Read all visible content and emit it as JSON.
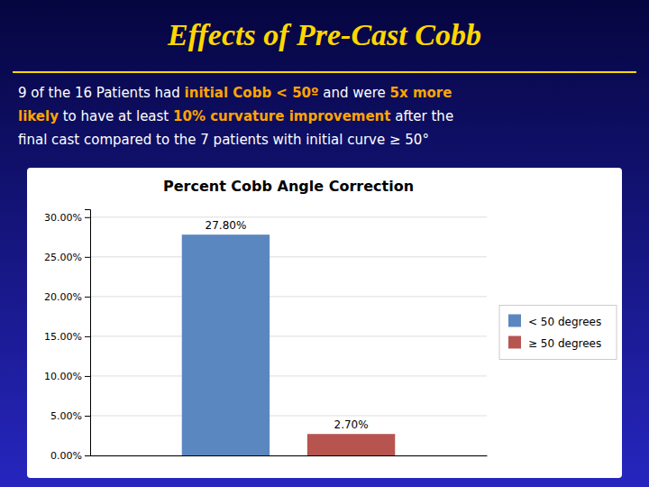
{
  "title": "Effects of Pre-Cast Cobb",
  "subtitle": [
    [
      {
        "text": "9 of the 16 Patients had "
      },
      {
        "text": "initial Cobb < 50º",
        "color": "#FFA500"
      },
      {
        "text": " and were "
      },
      {
        "text": "5x more",
        "color": "#FFA500"
      }
    ],
    [
      {
        "text": "likely",
        "color": "#FFA500"
      },
      {
        "text": " to have at least "
      },
      {
        "text": "10% curvature improvement",
        "color": "#FFA500"
      },
      {
        "text": " after the"
      }
    ],
    [
      {
        "text": "final cast compared to the 7 patients with initial curve ≥ 50°"
      }
    ]
  ],
  "chart_data": {
    "type": "bar",
    "title": "Percent Cobb Angle Correction",
    "categories": [
      null
    ],
    "series": [
      {
        "name": "< 50 degrees",
        "color": "#5B87C0",
        "values": [
          27.8
        ],
        "value_labels": [
          "27.80%"
        ]
      },
      {
        "name": "≥ 50 degrees",
        "color": "#B85450",
        "values": [
          2.7
        ],
        "value_labels": [
          "2.70%"
        ]
      }
    ],
    "ylim": [
      0,
      31
    ],
    "yticks": [
      {
        "value": 0,
        "label": "0.00%"
      },
      {
        "value": 5,
        "label": "5.00%"
      },
      {
        "value": 10,
        "label": "10.00%"
      },
      {
        "value": 15,
        "label": "15.00%"
      },
      {
        "value": 20,
        "label": "20.00%"
      },
      {
        "value": 25,
        "label": "25.00%"
      },
      {
        "value": 30,
        "label": "30.00%"
      }
    ],
    "grid": true,
    "legend": "right",
    "data_labels": true,
    "tick_labels": "y"
  }
}
